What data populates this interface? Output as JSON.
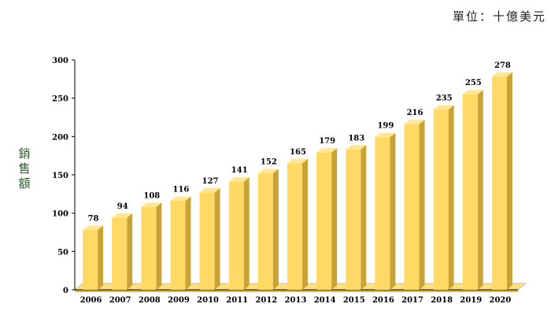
{
  "unit_label": "單位：十億美元",
  "chart_data": {
    "type": "bar",
    "title": "",
    "xlabel": "",
    "ylabel": "銷售額",
    "categories": [
      "2006",
      "2007",
      "2008",
      "2009",
      "2010",
      "2011",
      "2012",
      "2013",
      "2014",
      "2015",
      "2016",
      "2017",
      "2018",
      "2019",
      "2020"
    ],
    "values": [
      78,
      94,
      108,
      116,
      127,
      141,
      152,
      165,
      179,
      183,
      199,
      216,
      235,
      255,
      278
    ],
    "ylim": [
      0,
      300
    ],
    "yticks": [
      0,
      50,
      100,
      150,
      200,
      250,
      300
    ],
    "grid": false,
    "legend": "none",
    "colors": {
      "bar_front": "#FFD966",
      "bar_side": "#C9A336",
      "bar_top": "#FFE699",
      "floor": "#FFE080",
      "floor_edge": "#BFBFBF"
    }
  }
}
